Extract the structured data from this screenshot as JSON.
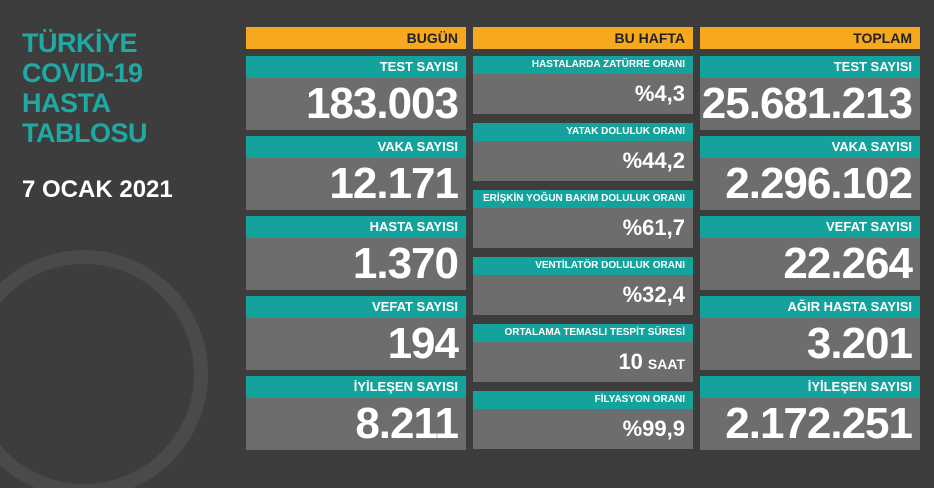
{
  "title": [
    "TÜRKİYE",
    "COVID-19",
    "HASTA",
    "TABLOSU"
  ],
  "date": "7 OCAK 2021",
  "columns": [
    {
      "header": "BUGÜN",
      "items": [
        {
          "label": "TEST SAYISI",
          "value": "183.003"
        },
        {
          "label": "VAKA SAYISI",
          "value": "12.171"
        },
        {
          "label": "HASTA SAYISI",
          "value": "1.370"
        },
        {
          "label": "VEFAT SAYISI",
          "value": "194"
        },
        {
          "label": "İYİLEŞEN SAYISI",
          "value": "8.211"
        }
      ]
    },
    {
      "header": "BU HAFTA",
      "items": [
        {
          "label": "HASTALARDA ZATÜRRE ORANI",
          "value": "%4,3"
        },
        {
          "label": "YATAK DOLULUK ORANI",
          "value": "%44,2"
        },
        {
          "label": "ERİŞKİN YOĞUN BAKIM DOLULUK ORANI",
          "value": "%61,7"
        },
        {
          "label": "VENTİLATÖR DOLULUK ORANI",
          "value": "%32,4"
        },
        {
          "label": "ORTALAMA TEMASLI TESPİT SÜRESİ",
          "value": "10",
          "unit": "SAAT"
        },
        {
          "label": "FİLYASYON ORANI",
          "value": "%99,9"
        }
      ]
    },
    {
      "header": "TOPLAM",
      "items": [
        {
          "label": "TEST SAYISI",
          "value": "25.681.213"
        },
        {
          "label": "VAKA SAYISI",
          "value": "2.296.102"
        },
        {
          "label": "VEFAT SAYISI",
          "value": "22.264"
        },
        {
          "label": "AĞIR HASTA SAYISI",
          "value": "3.201"
        },
        {
          "label": "İYİLEŞEN SAYISI",
          "value": "2.172.251"
        }
      ]
    }
  ]
}
